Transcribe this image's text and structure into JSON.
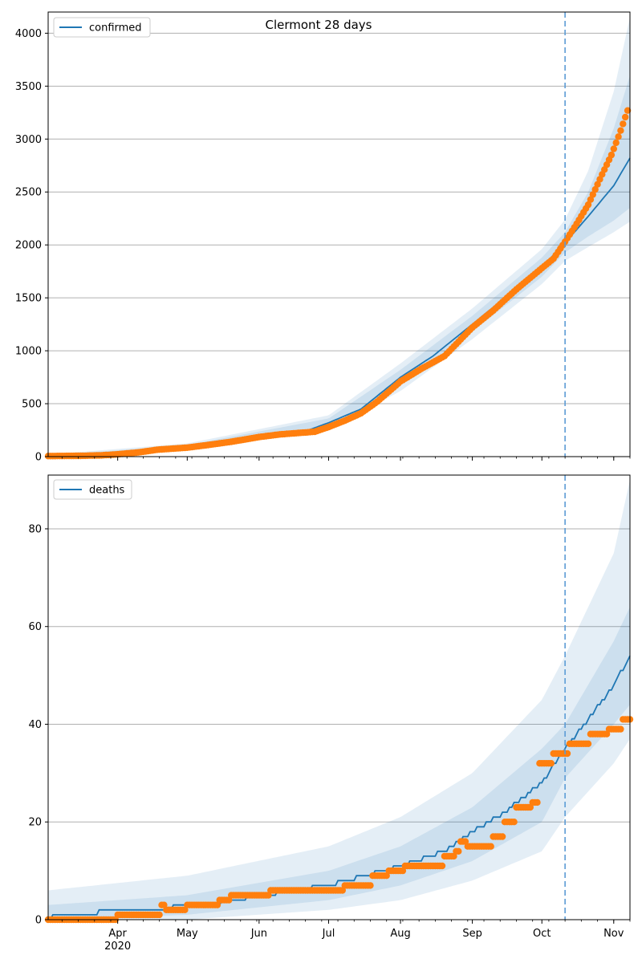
{
  "chart_data": [
    {
      "type": "line",
      "panel": "top",
      "title": "Clermont 28 days",
      "legend": [
        "confirmed"
      ],
      "legend_position": "upper-left",
      "grid_y": true,
      "ylim": [
        0,
        4200
      ],
      "yticks": [
        0,
        500,
        1000,
        1500,
        2000,
        2500,
        3000,
        3500,
        4000
      ],
      "xlim": [
        "2020-03-02",
        "2020-11-08"
      ],
      "x_major_ticks": [
        {
          "date": "2020-04-01",
          "label": "Apr",
          "sublabel": "2020"
        },
        {
          "date": "2020-05-01",
          "label": "May"
        },
        {
          "date": "2020-06-01",
          "label": "Jun"
        },
        {
          "date": "2020-07-01",
          "label": "Jul"
        },
        {
          "date": "2020-08-01",
          "label": "Aug"
        },
        {
          "date": "2020-09-01",
          "label": "Sep"
        },
        {
          "date": "2020-10-01",
          "label": "Oct"
        },
        {
          "date": "2020-11-01",
          "label": "Nov"
        }
      ],
      "forecast_start": "2020-10-11",
      "model_series": {
        "name": "confirmed",
        "points": [
          [
            "2020-03-02",
            0
          ],
          [
            "2020-04-01",
            18
          ],
          [
            "2020-04-15",
            55
          ],
          [
            "2020-05-01",
            90
          ],
          [
            "2020-06-01",
            200
          ],
          [
            "2020-06-21",
            240
          ],
          [
            "2020-07-01",
            320
          ],
          [
            "2020-07-15",
            450
          ],
          [
            "2020-08-01",
            750
          ],
          [
            "2020-08-15",
            950
          ],
          [
            "2020-09-01",
            1250
          ],
          [
            "2020-09-15",
            1500
          ],
          [
            "2020-10-01",
            1790
          ],
          [
            "2020-10-11",
            2020
          ],
          [
            "2020-10-21",
            2270
          ],
          [
            "2020-11-01",
            2560
          ],
          [
            "2020-11-08",
            2820
          ]
        ]
      },
      "observed": {
        "points": [
          [
            "2020-03-02",
            5
          ],
          [
            "2020-03-17",
            8
          ],
          [
            "2020-03-25",
            12
          ],
          [
            "2020-04-01",
            22
          ],
          [
            "2020-04-10",
            40
          ],
          [
            "2020-04-18",
            65
          ],
          [
            "2020-05-01",
            85
          ],
          [
            "2020-05-10",
            110
          ],
          [
            "2020-05-20",
            140
          ],
          [
            "2020-06-01",
            185
          ],
          [
            "2020-06-10",
            210
          ],
          [
            "2020-06-25",
            235
          ],
          [
            "2020-07-01",
            280
          ],
          [
            "2020-07-08",
            340
          ],
          [
            "2020-07-15",
            410
          ],
          [
            "2020-07-22",
            520
          ],
          [
            "2020-08-01",
            710
          ],
          [
            "2020-08-10",
            830
          ],
          [
            "2020-08-20",
            950
          ],
          [
            "2020-09-01",
            1220
          ],
          [
            "2020-09-10",
            1380
          ],
          [
            "2020-09-20",
            1580
          ],
          [
            "2020-10-01",
            1780
          ],
          [
            "2020-10-06",
            1870
          ],
          [
            "2020-10-11",
            2030
          ],
          [
            "2020-10-16",
            2200
          ],
          [
            "2020-10-21",
            2380
          ],
          [
            "2020-10-26",
            2620
          ],
          [
            "2020-10-31",
            2850
          ],
          [
            "2020-11-04",
            3080
          ],
          [
            "2020-11-07",
            3270
          ]
        ]
      },
      "bands": [
        {
          "upper": [
            [
              "2020-03-02",
              10
            ],
            [
              "2020-05-01",
              110
            ],
            [
              "2020-07-01",
              360
            ],
            [
              "2020-08-01",
              820
            ],
            [
              "2020-09-01",
              1330
            ],
            [
              "2020-10-01",
              1880
            ],
            [
              "2020-10-11",
              2120
            ],
            [
              "2020-10-21",
              2500
            ],
            [
              "2020-11-01",
              3100
            ],
            [
              "2020-11-08",
              3600
            ]
          ],
          "lower": [
            [
              "2020-03-02",
              0
            ],
            [
              "2020-05-01",
              75
            ],
            [
              "2020-07-01",
              285
            ],
            [
              "2020-08-01",
              680
            ],
            [
              "2020-09-01",
              1180
            ],
            [
              "2020-10-01",
              1700
            ],
            [
              "2020-10-11",
              1930
            ],
            [
              "2020-10-21",
              2080
            ],
            [
              "2020-11-01",
              2230
            ],
            [
              "2020-11-08",
              2350
            ]
          ]
        },
        {
          "upper": [
            [
              "2020-03-02",
              20
            ],
            [
              "2020-05-01",
              125
            ],
            [
              "2020-07-01",
              390
            ],
            [
              "2020-08-01",
              880
            ],
            [
              "2020-09-01",
              1400
            ],
            [
              "2020-10-01",
              1960
            ],
            [
              "2020-10-11",
              2240
            ],
            [
              "2020-10-21",
              2700
            ],
            [
              "2020-11-01",
              3450
            ],
            [
              "2020-11-08",
              4150
            ]
          ],
          "lower": [
            [
              "2020-03-02",
              0
            ],
            [
              "2020-05-01",
              60
            ],
            [
              "2020-07-01",
              255
            ],
            [
              "2020-08-01",
              620
            ],
            [
              "2020-09-01",
              1110
            ],
            [
              "2020-10-01",
              1630
            ],
            [
              "2020-10-11",
              1850
            ],
            [
              "2020-10-21",
              1980
            ],
            [
              "2020-11-01",
              2120
            ],
            [
              "2020-11-08",
              2220
            ]
          ]
        }
      ]
    },
    {
      "type": "line",
      "panel": "bottom",
      "legend": [
        "deaths"
      ],
      "legend_position": "upper-left",
      "grid_y": true,
      "ylim": [
        0,
        91
      ],
      "yticks": [
        0,
        20,
        40,
        60,
        80
      ],
      "xlim": [
        "2020-03-02",
        "2020-11-08"
      ],
      "x_major_ticks": [
        {
          "date": "2020-04-01",
          "label": "Apr",
          "sublabel": "2020"
        },
        {
          "date": "2020-05-01",
          "label": "May"
        },
        {
          "date": "2020-06-01",
          "label": "Jun"
        },
        {
          "date": "2020-07-01",
          "label": "Jul"
        },
        {
          "date": "2020-08-01",
          "label": "Aug"
        },
        {
          "date": "2020-09-01",
          "label": "Sep"
        },
        {
          "date": "2020-10-01",
          "label": "Oct"
        },
        {
          "date": "2020-11-01",
          "label": "Nov"
        }
      ],
      "forecast_start": "2020-10-11",
      "model_series": {
        "name": "deaths",
        "points": [
          [
            "2020-03-02",
            0
          ],
          [
            "2020-03-06",
            1
          ],
          [
            "2020-04-10",
            2
          ],
          [
            "2020-05-10",
            3
          ],
          [
            "2020-06-01",
            5
          ],
          [
            "2020-07-01",
            7
          ],
          [
            "2020-08-01",
            11
          ],
          [
            "2020-08-20",
            14
          ],
          [
            "2020-09-01",
            18
          ],
          [
            "2020-09-15",
            22
          ],
          [
            "2020-10-01",
            28
          ],
          [
            "2020-10-11",
            35
          ],
          [
            "2020-10-21",
            41
          ],
          [
            "2020-11-01",
            48
          ],
          [
            "2020-11-08",
            54
          ]
        ]
      },
      "observed": {
        "points": [
          [
            "2020-03-02",
            0
          ],
          [
            "2020-03-31",
            0
          ],
          [
            "2020-04-01",
            1
          ],
          [
            "2020-04-18",
            1
          ],
          [
            "2020-04-20",
            3
          ],
          [
            "2020-04-22",
            2
          ],
          [
            "2020-04-28",
            2
          ],
          [
            "2020-05-01",
            3
          ],
          [
            "2020-05-12",
            3
          ],
          [
            "2020-05-15",
            4
          ],
          [
            "2020-05-20",
            5
          ],
          [
            "2020-06-05",
            5
          ],
          [
            "2020-06-06",
            6
          ],
          [
            "2020-06-30",
            6
          ],
          [
            "2020-07-08",
            7
          ],
          [
            "2020-07-18",
            7
          ],
          [
            "2020-07-20",
            9
          ],
          [
            "2020-07-27",
            10
          ],
          [
            "2020-08-03",
            11
          ],
          [
            "2020-08-15",
            11
          ],
          [
            "2020-08-20",
            13
          ],
          [
            "2020-08-25",
            14
          ],
          [
            "2020-08-27",
            16
          ],
          [
            "2020-08-30",
            15
          ],
          [
            "2020-09-05",
            15
          ],
          [
            "2020-09-10",
            17
          ],
          [
            "2020-09-15",
            20
          ],
          [
            "2020-09-20",
            23
          ],
          [
            "2020-09-27",
            24
          ],
          [
            "2020-09-30",
            32
          ],
          [
            "2020-10-04",
            32
          ],
          [
            "2020-10-06",
            34
          ],
          [
            "2020-10-11",
            34
          ],
          [
            "2020-10-13",
            36
          ],
          [
            "2020-10-20",
            36
          ],
          [
            "2020-10-22",
            38
          ],
          [
            "2020-10-28",
            38
          ],
          [
            "2020-10-30",
            39
          ],
          [
            "2020-11-04",
            39
          ],
          [
            "2020-11-05",
            41
          ],
          [
            "2020-11-08",
            41
          ]
        ]
      },
      "bands": [
        {
          "upper": [
            [
              "2020-03-02",
              3
            ],
            [
              "2020-05-01",
              5
            ],
            [
              "2020-07-01",
              10
            ],
            [
              "2020-08-01",
              15
            ],
            [
              "2020-09-01",
              23
            ],
            [
              "2020-10-01",
              35
            ],
            [
              "2020-10-11",
              40
            ],
            [
              "2020-11-01",
              57
            ],
            [
              "2020-11-08",
              64
            ]
          ],
          "lower": [
            [
              "2020-03-02",
              0
            ],
            [
              "2020-05-01",
              1
            ],
            [
              "2020-07-01",
              4
            ],
            [
              "2020-08-01",
              7
            ],
            [
              "2020-09-01",
              12
            ],
            [
              "2020-10-01",
              20
            ],
            [
              "2020-10-11",
              29
            ],
            [
              "2020-11-01",
              40
            ],
            [
              "2020-11-08",
              44
            ]
          ]
        },
        {
          "upper": [
            [
              "2020-03-02",
              6
            ],
            [
              "2020-05-01",
              9
            ],
            [
              "2020-07-01",
              15
            ],
            [
              "2020-08-01",
              21
            ],
            [
              "2020-09-01",
              30
            ],
            [
              "2020-10-01",
              45
            ],
            [
              "2020-10-11",
              54
            ],
            [
              "2020-11-01",
              75
            ],
            [
              "2020-11-08",
              90
            ]
          ],
          "lower": [
            [
              "2020-03-02",
              0
            ],
            [
              "2020-05-01",
              0
            ],
            [
              "2020-07-01",
              2
            ],
            [
              "2020-08-01",
              4
            ],
            [
              "2020-09-01",
              8
            ],
            [
              "2020-10-01",
              14
            ],
            [
              "2020-10-11",
              21
            ],
            [
              "2020-11-01",
              32
            ],
            [
              "2020-11-08",
              37
            ]
          ]
        }
      ]
    }
  ],
  "colors": {
    "model_line": "#1f77b4",
    "observed": "#ff7f0e",
    "band": "#1f77b4",
    "forecast_line": "#5b9bd5",
    "grid": "#b0b0b0"
  }
}
